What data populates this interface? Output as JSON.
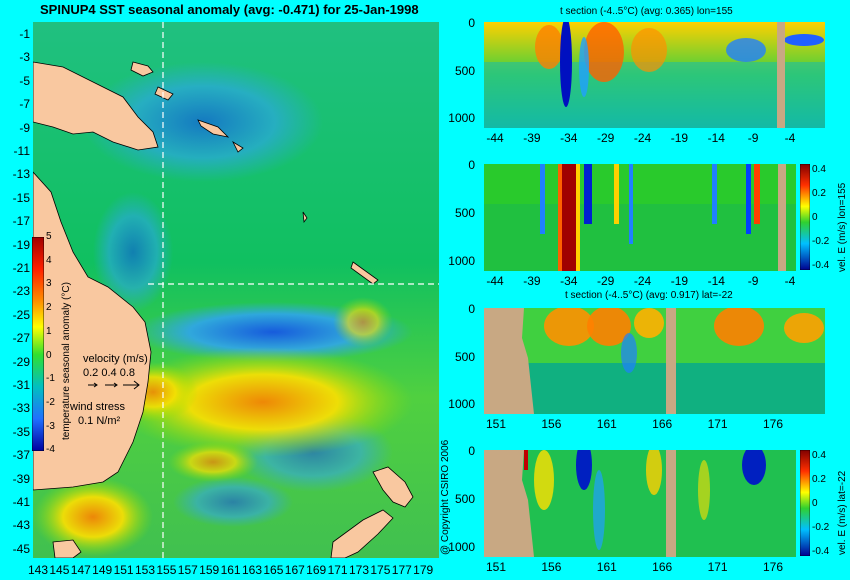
{
  "main_title": "SPINUP4 SST seasonal anomaly (avg: -0.471) for 25-Jan-1998",
  "map": {
    "y_ticks": [
      "-1",
      "-3",
      "-5",
      "-7",
      "-9",
      "-11",
      "-13",
      "-15",
      "-17",
      "-19",
      "-21",
      "-23",
      "-25",
      "-27",
      "-29",
      "-31",
      "-33",
      "-35",
      "-37",
      "-39",
      "-41",
      "-43",
      "-45"
    ],
    "x_ticks": [
      "143",
      "145",
      "147",
      "149",
      "151",
      "153",
      "155",
      "157",
      "159",
      "161",
      "163",
      "165",
      "167",
      "169",
      "171",
      "173",
      "175",
      "177",
      "179"
    ],
    "colorbar_ticks": [
      "5",
      "4",
      "3",
      "2",
      "1",
      "0",
      "-1",
      "-2",
      "-3",
      "-4"
    ],
    "colorbar_label": "temperature seasonal anomaly (°C)",
    "velocity_label": "velocity (m/s)",
    "velocity_values": "0.2 0.4 0.8",
    "wind_label": "wind stress",
    "wind_value": "0.1 N/m²",
    "copyright": "@ Copyright CSIRO 2006"
  },
  "panels": {
    "p1": {
      "title": "t section (-4..5°C) (avg: 0.365) lon=155",
      "x_ticks": [
        "-44",
        "-39",
        "-34",
        "-29",
        "-24",
        "-19",
        "-14",
        "-9",
        "-4"
      ],
      "y_ticks": [
        "0",
        "500",
        "1000"
      ]
    },
    "p2": {
      "x_ticks": [
        "-44",
        "-39",
        "-34",
        "-29",
        "-24",
        "-19",
        "-14",
        "-9",
        "-4"
      ],
      "y_ticks": [
        "0",
        "500",
        "1000"
      ],
      "cb_ticks": [
        "0.4",
        "0.2",
        "0",
        "-0.2",
        "-0.4"
      ],
      "cb_label": "vel. E (m/s) lon=155"
    },
    "p3": {
      "title": "t section (-4..5°C) (avg: 0.917) lat=-22",
      "x_ticks": [
        "151",
        "156",
        "161",
        "166",
        "171",
        "176"
      ],
      "y_ticks": [
        "0",
        "500",
        "1000"
      ]
    },
    "p4": {
      "x_ticks": [
        "151",
        "156",
        "161",
        "166",
        "171",
        "176"
      ],
      "y_ticks": [
        "0",
        "500",
        "1000"
      ],
      "cb_ticks": [
        "0.4",
        "0.2",
        "0",
        "-0.2",
        "-0.4"
      ],
      "cb_label": "vel. E (m/s) lat=-22"
    }
  },
  "colors": {
    "background": "#00ffff",
    "land": "#f9c8a0",
    "section_land": "#c8a883"
  }
}
